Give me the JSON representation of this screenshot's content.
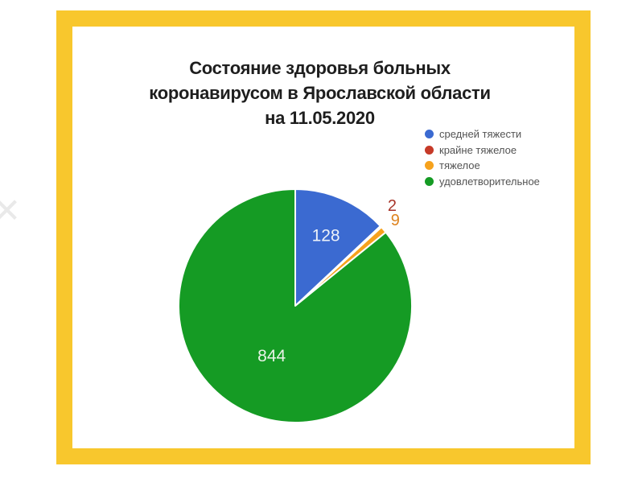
{
  "page": {
    "background_color": "#ffffff"
  },
  "frame": {
    "border_color": "#f8c72d"
  },
  "watermark": {
    "glyph": "✕",
    "color": "#e9e9e9"
  },
  "chart_data": {
    "type": "pie",
    "title": "Состояние здоровья больных коронавирусом в Ярославской области на 11.05.2020",
    "title_lines": [
      "Состояние здоровья больных",
      "коронавирусом в Ярославской области",
      "на 11.05.2020"
    ],
    "slices": [
      {
        "label": "средней тяжести",
        "value": 128,
        "value_label": "128",
        "color": "#3b6ad1",
        "value_label_color": "#edf2f9",
        "label_placement": "inside"
      },
      {
        "label": "крайне тяжелое",
        "value": 2,
        "value_label": "2",
        "color": "#c63a28",
        "value_label_color": "#a8352a",
        "label_placement": "outside"
      },
      {
        "label": "тяжелое",
        "value": 9,
        "value_label": "9",
        "color": "#f6a21d",
        "value_label_color": "#de831e",
        "label_placement": "outside"
      },
      {
        "label": "удовлетворительное",
        "value": 844,
        "value_label": "844",
        "color": "#159b24",
        "value_label_color": "#e9f3e7",
        "label_placement": "inside"
      }
    ],
    "legend_position": "top-right",
    "legend_marker": "circle",
    "start_angle_deg": 0,
    "direction": "clockwise"
  }
}
